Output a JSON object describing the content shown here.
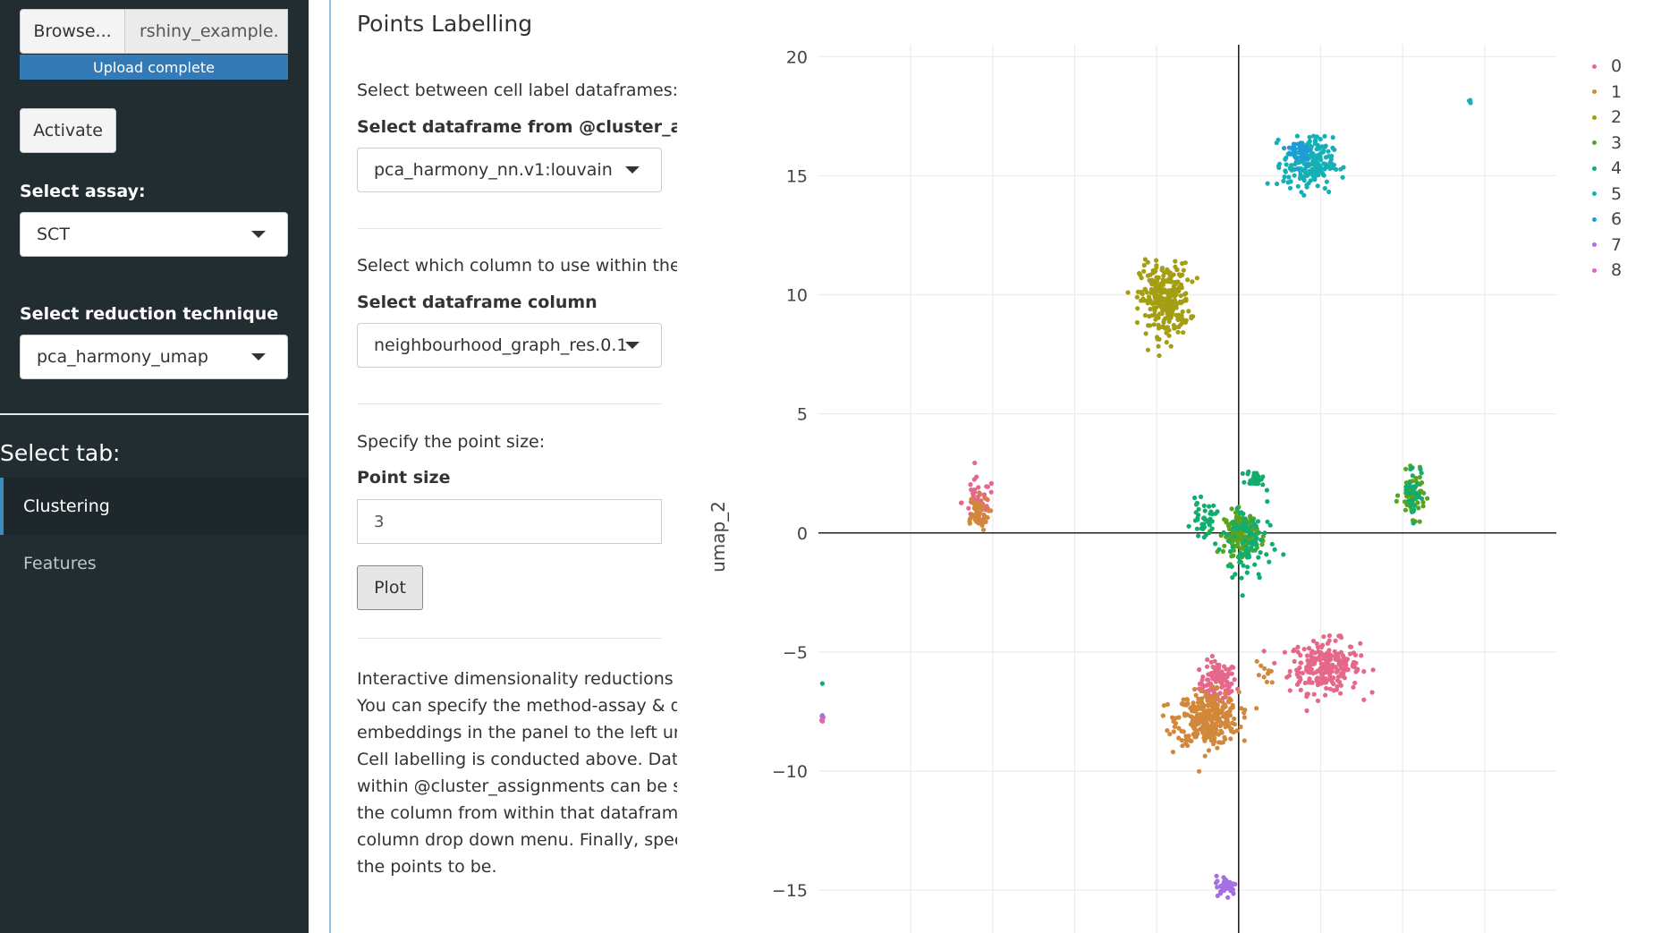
{
  "sidebar": {
    "browse_label": "Browse...",
    "file_name": "rshiny_example.",
    "upload_status": "Upload complete",
    "activate_label": "Activate",
    "assay_label": "Select assay:",
    "assay_value": "SCT",
    "reduction_label": "Select reduction technique",
    "reduction_value": "pca_harmony_umap",
    "tab_header": "Select tab:",
    "tabs": [
      {
        "label": "Clustering",
        "active": true
      },
      {
        "label": "Features",
        "active": false
      }
    ]
  },
  "main": {
    "title": "Points Labelling",
    "df_help": "Select between cell label dataframes:",
    "df_label": "Select dataframe from @cluster_assignments",
    "df_value": "pca_harmony_nn.v1:louvain",
    "col_help": "Select which column to use within the dataframe:",
    "col_label": "Select dataframe column",
    "col_value": "neighbourhood_graph_res.0.1",
    "size_help": "Specify the point size:",
    "size_label": "Point size",
    "size_value": "3",
    "plot_button": "Plot",
    "description_lines": [
      "Interactive dimensionality reductions plot.",
      "You can specify the method-assay & dimensionality",
      "embeddings in the panel to the left under",
      "Cell labelling is conducted above. Dataframes",
      "within @cluster_assignments can be selected, and",
      "the column from within that dataframe using the",
      "column drop down menu. Finally, specify how big",
      "the points to be."
    ]
  },
  "chart_data": {
    "type": "scatter",
    "title": "",
    "xlabel": "",
    "ylabel": "umap_2",
    "ylim": [
      -16.8,
      20.5
    ],
    "xlim": [
      -20.5,
      15.5
    ],
    "y_ticks": [
      20,
      15,
      10,
      5,
      0,
      -5,
      -10,
      -15
    ],
    "y_tick_labels": [
      "20",
      "15",
      "10",
      "5",
      "0",
      "−5",
      "−10",
      "−15"
    ],
    "x_tick_values": [
      -16,
      -12,
      -8,
      -4,
      0,
      4,
      8,
      12
    ],
    "grid": true,
    "zero_lines": true,
    "legend_position": "right",
    "series": [
      {
        "name": "0",
        "color": "#e5688a",
        "clusters": [
          [
            -1.0,
            -6.3,
            0.9,
            0.9,
            110
          ],
          [
            4.2,
            -5.6,
            1.7,
            1.1,
            240
          ],
          [
            -12.7,
            1.3,
            0.8,
            1.0,
            50
          ],
          [
            -20.3,
            -7.8,
            0.1,
            0.1,
            3
          ]
        ]
      },
      {
        "name": "1",
        "color": "#d1883a",
        "clusters": [
          [
            -1.5,
            -7.8,
            1.5,
            1.1,
            320
          ],
          [
            -12.8,
            0.8,
            0.6,
            0.7,
            45
          ],
          [
            1.2,
            -6.0,
            0.5,
            0.8,
            10
          ]
        ]
      },
      {
        "name": "2",
        "color": "#a39e12",
        "clusters": [
          [
            -3.6,
            9.8,
            1.2,
            1.5,
            290
          ]
        ]
      },
      {
        "name": "3",
        "color": "#5aa31e",
        "clusters": [
          [
            0.1,
            0.0,
            0.8,
            0.9,
            150
          ],
          [
            8.5,
            1.6,
            0.6,
            0.9,
            60
          ]
        ]
      },
      {
        "name": "4",
        "color": "#12ad6e",
        "clusters": [
          [
            0.4,
            -0.5,
            1.2,
            2.0,
            90
          ],
          [
            -1.7,
            0.6,
            0.6,
            0.7,
            40
          ],
          [
            0.8,
            2.3,
            0.4,
            0.3,
            30
          ],
          [
            8.5,
            1.8,
            0.4,
            1.2,
            40
          ],
          [
            -20.3,
            -6.3,
            0.05,
            0.05,
            1
          ]
        ]
      },
      {
        "name": "5",
        "color": "#14b0b6",
        "clusters": [
          [
            3.4,
            15.5,
            1.2,
            1.1,
            200
          ],
          [
            11.3,
            18.1,
            0.1,
            0.1,
            3
          ]
        ]
      },
      {
        "name": "6",
        "color": "#1f9cd8",
        "clusters": [
          [
            3.0,
            16.0,
            0.6,
            0.6,
            40
          ]
        ]
      },
      {
        "name": "7",
        "color": "#a570e0",
        "clusters": [
          [
            -0.6,
            -14.8,
            0.5,
            0.4,
            45
          ],
          [
            -20.3,
            -7.7,
            0.05,
            0.05,
            2
          ]
        ]
      },
      {
        "name": "8",
        "color": "#e066b8",
        "clusters": [
          [
            -20.3,
            -7.9,
            0.05,
            0.05,
            2
          ]
        ]
      }
    ]
  }
}
